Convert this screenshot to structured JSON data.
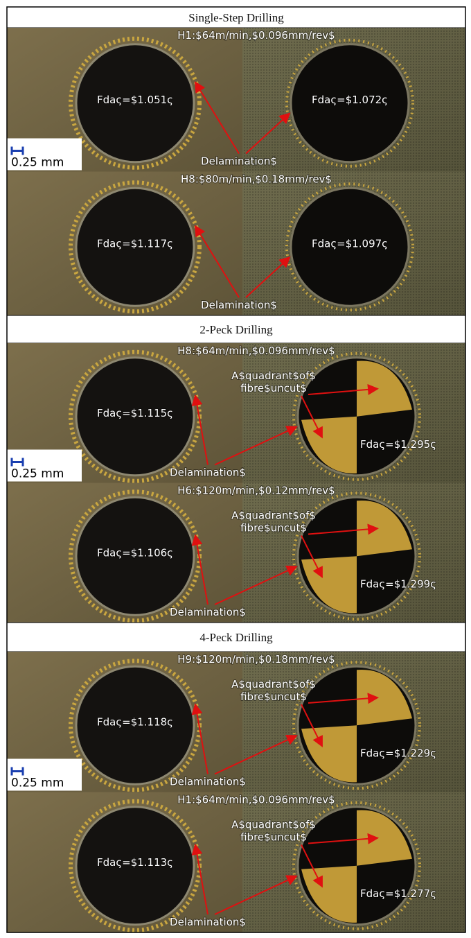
{
  "sections": [
    {
      "title": "Single-Step Drilling",
      "scale_label": "0.25 mm",
      "rows": [
        {
          "condition": "H1:$64m/min,$0.096mm/rev$",
          "left": "Fdaς=$1.051ς",
          "right": "Fdaς=$1.072ς",
          "delamination": "Delamination$"
        },
        {
          "condition": "H8:$80m/min,$0.18mm/rev$",
          "left": "Fdaς=$1.117ς",
          "right": "Fdaς=$1.097ς",
          "delamination": "Delamination$"
        }
      ]
    },
    {
      "title": "2-Peck Drilling",
      "scale_label": "0.25 mm",
      "rows": [
        {
          "condition": "H8:$64m/min,$0.096mm/rev$",
          "left": "Fdaς=$1.115ς",
          "right": "Fdaς=$1.295ς",
          "quadrant": [
            "A$quadrant$of$",
            "fibre$uncut$"
          ],
          "delamination": "Delamination$"
        },
        {
          "condition": "H6:$120m/min,$0.12mm/rev$",
          "left": "Fdaς=$1.106ς",
          "right": "Fdaς=$1.299ς",
          "quadrant": [
            "A$quadrant$of$",
            "fibre$uncut$"
          ],
          "delamination": "Delamination$"
        }
      ]
    },
    {
      "title": "4-Peck Drilling",
      "scale_label": "0.25 mm",
      "rows": [
        {
          "condition": "H9:$120m/min,$0.18mm/rev$",
          "left": "Fdaς=$1.118ς",
          "right": "Fdaς=$1.229ς",
          "quadrant": [
            "A$quadrant$of$",
            "fibre$uncut$"
          ],
          "delamination": "Delamination$"
        },
        {
          "condition": "H1:$64m/min,$0.096mm/rev$",
          "left": "Fdaς=$1.113ς",
          "right": "Fdaς=$1.277ς",
          "quadrant": [
            "A$quadrant$of$",
            "fibre$uncut$"
          ],
          "delamination": "Delamination$"
        }
      ]
    }
  ]
}
